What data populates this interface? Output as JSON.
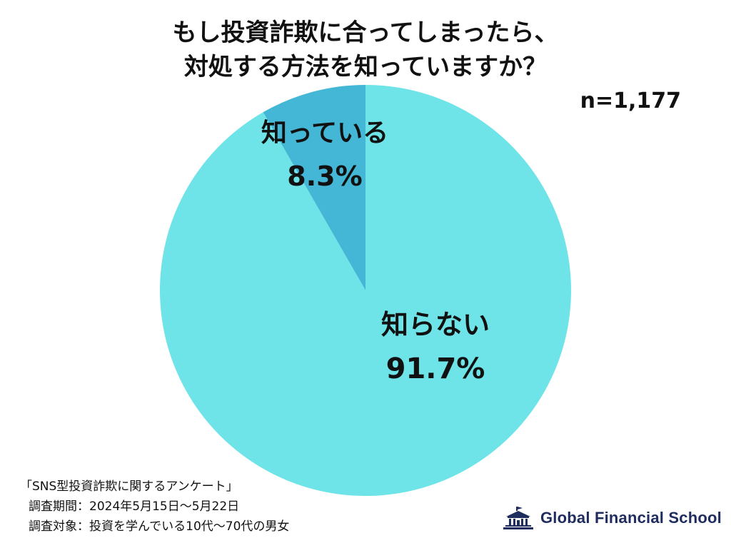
{
  "title": {
    "line1": "もし投資詐欺に合ってしまったら、",
    "line2": "対処する方法を知っていますか？"
  },
  "sample_size": "n=1,177",
  "chart_data": {
    "type": "pie",
    "title": "もし投資詐欺に合ってしまったら、対処する方法を知っていますか？",
    "slices": [
      {
        "label": "知っている",
        "value": 8.3,
        "value_label": "8.3%",
        "color": "#44b7d6"
      },
      {
        "label": "知らない",
        "value": 91.7,
        "value_label": "91.7%",
        "color": "#6ee3e8"
      }
    ],
    "start": "12 o'clock, counter-clockwise"
  },
  "footer": {
    "survey_name": "「SNS型投資詐欺に関するアンケート」",
    "period": "調査期間：2024年5月15日～5月22日",
    "target": "調査対象：投資を学んでいる10代～70代の男女"
  },
  "logo": {
    "text": "Global Financial School",
    "icon": "school-building-icon",
    "color": "#1e2c5e"
  }
}
